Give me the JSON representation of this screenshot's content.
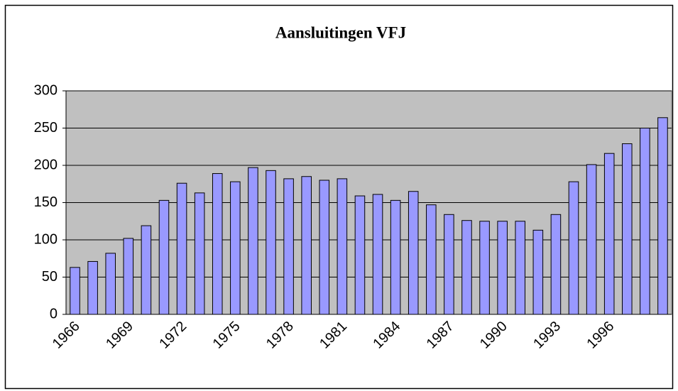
{
  "chart_data": {
    "type": "bar",
    "title": "Aansluitingen VFJ",
    "categories": [
      "1966",
      null,
      null,
      "1969",
      null,
      null,
      "1972",
      null,
      null,
      "1975",
      null,
      null,
      "1978",
      null,
      null,
      "1981",
      null,
      null,
      "1984",
      null,
      null,
      "1987",
      null,
      null,
      "1990",
      null,
      null,
      "1993",
      null,
      null,
      "1996",
      null,
      null,
      null
    ],
    "values": [
      63,
      71,
      82,
      102,
      119,
      153,
      176,
      163,
      189,
      178,
      197,
      193,
      182,
      185,
      180,
      182,
      159,
      161,
      153,
      165,
      147,
      134,
      126,
      125,
      125,
      125,
      113,
      134,
      178,
      201,
      216,
      229,
      250,
      264
    ],
    "color": "#9999ff",
    "ylim": [
      0,
      300
    ],
    "yticks": [
      0,
      50,
      100,
      150,
      200,
      250,
      300
    ],
    "grid": true
  }
}
